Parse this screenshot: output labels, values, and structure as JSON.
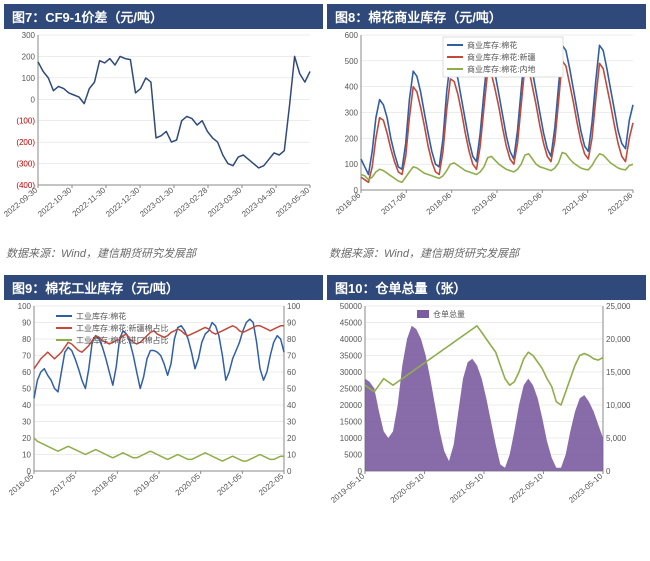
{
  "source_text": "数据来源：Wind，建信期货研究发展部",
  "chart7": {
    "type": "line",
    "title": "图7：CF9-1价差（元/吨）",
    "ylim": [
      -400,
      300
    ],
    "ytick_step": 100,
    "xticks": [
      "2022-09-30",
      "2022-10-30",
      "2022-11-30",
      "2022-12-30",
      "2023-01-30",
      "2023-02-28",
      "2023-03-30",
      "2023-04-30",
      "2023-05-30"
    ],
    "line_color": "#2f4a7a",
    "line_width": 1.5,
    "grid_color": "#d9d9d9",
    "axis_color": "#8a8a8a",
    "neg_tick_color": "#c00000",
    "data": [
      175,
      130,
      100,
      40,
      60,
      50,
      30,
      20,
      10,
      -20,
      50,
      80,
      180,
      170,
      190,
      160,
      200,
      190,
      185,
      30,
      50,
      100,
      80,
      -180,
      -170,
      -150,
      -200,
      -190,
      -100,
      -80,
      -90,
      -120,
      -100,
      -150,
      -180,
      -200,
      -260,
      -300,
      -310,
      -270,
      -260,
      -280,
      -300,
      -320,
      -310,
      -280,
      -250,
      -260,
      -240,
      -30,
      200,
      120,
      80,
      130
    ]
  },
  "chart8": {
    "type": "line",
    "title": "图8：棉花商业库存（元/吨）",
    "ylim": [
      0,
      600
    ],
    "ytick_step": 100,
    "xticks": [
      "2016-06",
      "2017-06",
      "2018-06",
      "2019-06",
      "2020-06",
      "2021-06",
      "2022-06"
    ],
    "grid_color": "#d9d9d9",
    "axis_color": "#8a8a8a",
    "legend": [
      {
        "label": "商业库存:棉花",
        "color": "#2f5fa6"
      },
      {
        "label": "商业库存:棉花:新疆",
        "color": "#c24a3a"
      },
      {
        "label": "商业库存:棉花:内地",
        "color": "#8fae4a"
      }
    ],
    "series": {
      "total": [
        120,
        90,
        60,
        150,
        280,
        350,
        330,
        280,
        200,
        140,
        90,
        80,
        180,
        350,
        460,
        440,
        380,
        300,
        220,
        150,
        100,
        90,
        200,
        380,
        500,
        490,
        430,
        350,
        270,
        190,
        130,
        110,
        220,
        380,
        520,
        510,
        450,
        370,
        290,
        210,
        150,
        120,
        230,
        390,
        540,
        530,
        460,
        380,
        300,
        220,
        160,
        130,
        240,
        400,
        560,
        540,
        470,
        390,
        310,
        230,
        170,
        150,
        260,
        420,
        560,
        540,
        470,
        390,
        310,
        230,
        180,
        160,
        270,
        330
      ],
      "xinjiang": [
        50,
        40,
        30,
        90,
        200,
        280,
        270,
        220,
        160,
        110,
        70,
        60,
        130,
        280,
        400,
        380,
        320,
        250,
        170,
        110,
        70,
        60,
        150,
        310,
        430,
        420,
        370,
        300,
        220,
        150,
        100,
        80,
        170,
        320,
        460,
        450,
        390,
        320,
        240,
        170,
        120,
        100,
        180,
        330,
        480,
        470,
        400,
        330,
        250,
        180,
        130,
        110,
        190,
        340,
        500,
        480,
        410,
        340,
        260,
        190,
        140,
        120,
        200,
        350,
        490,
        470,
        400,
        330,
        250,
        180,
        130,
        110,
        200,
        260
      ],
      "neidi": [
        60,
        55,
        40,
        50,
        70,
        80,
        75,
        65,
        55,
        45,
        35,
        30,
        50,
        70,
        90,
        85,
        75,
        65,
        60,
        55,
        50,
        45,
        55,
        75,
        100,
        105,
        95,
        85,
        75,
        70,
        65,
        60,
        70,
        90,
        125,
        130,
        115,
        100,
        90,
        80,
        75,
        70,
        80,
        100,
        135,
        140,
        120,
        100,
        90,
        85,
        80,
        75,
        85,
        105,
        145,
        140,
        120,
        105,
        95,
        85,
        80,
        78,
        95,
        120,
        140,
        135,
        120,
        105,
        95,
        85,
        80,
        78,
        95,
        100
      ]
    }
  },
  "chart9": {
    "type": "line-dual",
    "title": "图9：棉花工业库存（元/吨）",
    "ylim": [
      0,
      100
    ],
    "ytick_step": 10,
    "ylim2": [
      0,
      100
    ],
    "ytick_step2": 10,
    "xticks": [
      "2016-05",
      "2017-05",
      "2018-05",
      "2019-05",
      "2020-05",
      "2021-05",
      "2022-05"
    ],
    "grid_color": "#d9d9d9",
    "axis_color": "#8a8a8a",
    "legend": [
      {
        "label": "工业库存:棉花",
        "color": "#2f5fa6"
      },
      {
        "label": "工业库存:棉花:新疆棉占比",
        "color": "#c24a3a"
      },
      {
        "label": "工业库存:棉花:进口棉占比",
        "color": "#8fae4a"
      }
    ],
    "series": {
      "stock": [
        44,
        55,
        60,
        62,
        58,
        55,
        50,
        48,
        60,
        72,
        75,
        73,
        68,
        62,
        55,
        50,
        62,
        78,
        82,
        80,
        75,
        68,
        60,
        52,
        63,
        80,
        85,
        83,
        78,
        70,
        60,
        50,
        57,
        68,
        73,
        73,
        72,
        70,
        65,
        58,
        65,
        80,
        87,
        88,
        85,
        80,
        72,
        62,
        68,
        78,
        83,
        85,
        90,
        88,
        82,
        70,
        55,
        60,
        68,
        73,
        78,
        85,
        90,
        92,
        90,
        78,
        62,
        55,
        60,
        70,
        78,
        82,
        80,
        72
      ],
      "xjratio": [
        62,
        65,
        68,
        70,
        72,
        70,
        68,
        70,
        72,
        75,
        78,
        77,
        75,
        73,
        72,
        74,
        76,
        79,
        82,
        81,
        79,
        78,
        77,
        78,
        79,
        80,
        82,
        83,
        80,
        78,
        77,
        78,
        80,
        82,
        84,
        85,
        83,
        82,
        81,
        82,
        84,
        85,
        86,
        85,
        83,
        82,
        83,
        84,
        85,
        86,
        87,
        86,
        84,
        83,
        84,
        85,
        86,
        87,
        88,
        87,
        85,
        84,
        85,
        86,
        87,
        88,
        88,
        87,
        86,
        85,
        86,
        87,
        88,
        88
      ],
      "imratio": [
        20,
        18,
        17,
        16,
        15,
        14,
        13,
        12,
        13,
        14,
        15,
        14,
        13,
        12,
        11,
        10,
        11,
        12,
        13,
        12,
        11,
        10,
        9,
        8,
        9,
        10,
        11,
        10,
        9,
        8,
        8,
        9,
        10,
        11,
        12,
        11,
        10,
        9,
        8,
        7,
        8,
        9,
        10,
        9,
        8,
        7,
        7,
        8,
        9,
        10,
        11,
        10,
        9,
        8,
        7,
        6,
        7,
        8,
        9,
        8,
        7,
        6,
        6,
        7,
        8,
        9,
        10,
        9,
        8,
        7,
        7,
        8,
        9,
        9
      ]
    }
  },
  "chart10": {
    "type": "area-line-dual",
    "title": "图10：仓单总量（张）",
    "ylim": [
      0,
      50000
    ],
    "ytick_step": 5000,
    "ylim2": [
      0,
      25000
    ],
    "ytick_step2": 5000,
    "xticks": [
      "2019-05-10",
      "2020-05-10",
      "2021-05-10",
      "2022-05-10",
      "2023-05-10"
    ],
    "grid_color": "#d9d9d9",
    "axis_color": "#8a8a8a",
    "legend": [
      {
        "label": "仓单总量",
        "color": "#7a5ca0"
      }
    ],
    "line_color": "#8fae4a",
    "area_color": "#7a5ca0",
    "series": {
      "area": [
        28000,
        27000,
        25000,
        18000,
        12000,
        10000,
        12000,
        20000,
        32000,
        40000,
        44000,
        43000,
        40000,
        35000,
        28000,
        20000,
        12000,
        6000,
        3000,
        8000,
        18000,
        28000,
        33000,
        34000,
        32000,
        28000,
        22000,
        15000,
        8000,
        2000,
        1000,
        5000,
        12000,
        20000,
        26000,
        28000,
        26000,
        22000,
        16000,
        9000,
        4000,
        1000,
        1000,
        5000,
        12000,
        18000,
        22000,
        23000,
        21000,
        18000,
        14000,
        10000
      ],
      "line": [
        13000,
        12500,
        12000,
        13000,
        14000,
        13500,
        13000,
        13500,
        14000,
        14500,
        15000,
        15500,
        16000,
        16500,
        17000,
        17500,
        18000,
        18500,
        19000,
        19500,
        20000,
        20500,
        21000,
        21500,
        22000,
        21000,
        20000,
        19000,
        18000,
        16000,
        14000,
        13000,
        13500,
        15000,
        17000,
        18000,
        17500,
        16500,
        15500,
        14000,
        12800,
        10500,
        10000,
        12000,
        14000,
        16000,
        17500,
        17800,
        17500,
        17000,
        16800,
        17200
      ]
    }
  }
}
